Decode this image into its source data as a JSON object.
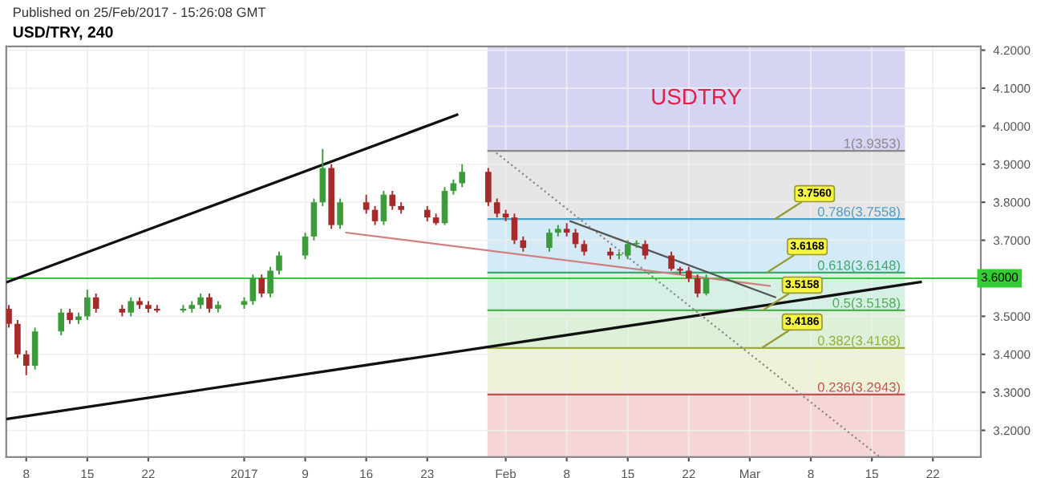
{
  "chart_data": {
    "type": "candlestick",
    "title": "USD/TRY, 240",
    "x": [
      "2016-12-06",
      "2016-12-07",
      "2016-12-08",
      "2016-12-09",
      "2016-12-12",
      "2016-12-13",
      "2016-12-14",
      "2016-12-15",
      "2016-12-16",
      "2016-12-19",
      "2016-12-20",
      "2016-12-21",
      "2016-12-22",
      "2016-12-23",
      "2016-12-26",
      "2016-12-27",
      "2016-12-28",
      "2016-12-29",
      "2016-12-30",
      "2017-01-02",
      "2017-01-03",
      "2017-01-04",
      "2017-01-05",
      "2017-01-06",
      "2017-01-09",
      "2017-01-10",
      "2017-01-11",
      "2017-01-12",
      "2017-01-13",
      "2017-01-16",
      "2017-01-17",
      "2017-01-18",
      "2017-01-19",
      "2017-01-20",
      "2017-01-23",
      "2017-01-24",
      "2017-01-25",
      "2017-01-26",
      "2017-01-27",
      "2017-01-30",
      "2017-01-31",
      "2017-02-01",
      "2017-02-02",
      "2017-02-03",
      "2017-02-06",
      "2017-02-07",
      "2017-02-08",
      "2017-02-09",
      "2017-02-10",
      "2017-02-13",
      "2017-02-14",
      "2017-02-15",
      "2017-02-16",
      "2017-02-17",
      "2017-02-20",
      "2017-02-21",
      "2017-02-22",
      "2017-02-23",
      "2017-02-24"
    ],
    "ohlc": [
      [
        3.52,
        3.53,
        3.47,
        3.48
      ],
      [
        3.48,
        3.49,
        3.39,
        3.4
      ],
      [
        3.4,
        3.41,
        3.345,
        3.37
      ],
      [
        3.37,
        3.47,
        3.36,
        3.46
      ],
      [
        3.46,
        3.52,
        3.45,
        3.51
      ],
      [
        3.51,
        3.52,
        3.48,
        3.49
      ],
      [
        3.49,
        3.51,
        3.48,
        3.5
      ],
      [
        3.5,
        3.57,
        3.49,
        3.55
      ],
      [
        3.55,
        3.56,
        3.51,
        3.52
      ],
      [
        3.52,
        3.53,
        3.5,
        3.51
      ],
      [
        3.51,
        3.55,
        3.5,
        3.54
      ],
      [
        3.54,
        3.55,
        3.52,
        3.53
      ],
      [
        3.53,
        3.54,
        3.51,
        3.52
      ],
      [
        3.52,
        3.53,
        3.51,
        3.515
      ],
      [
        3.515,
        3.53,
        3.51,
        3.52
      ],
      [
        3.52,
        3.54,
        3.51,
        3.53
      ],
      [
        3.53,
        3.56,
        3.52,
        3.55
      ],
      [
        3.55,
        3.56,
        3.51,
        3.52
      ],
      [
        3.52,
        3.54,
        3.51,
        3.53
      ],
      [
        3.53,
        3.55,
        3.52,
        3.54
      ],
      [
        3.54,
        3.61,
        3.53,
        3.6
      ],
      [
        3.6,
        3.61,
        3.55,
        3.56
      ],
      [
        3.56,
        3.63,
        3.55,
        3.62
      ],
      [
        3.62,
        3.67,
        3.61,
        3.66
      ],
      [
        3.66,
        3.72,
        3.65,
        3.71
      ],
      [
        3.71,
        3.81,
        3.7,
        3.8
      ],
      [
        3.8,
        3.94,
        3.79,
        3.89
      ],
      [
        3.89,
        3.9,
        3.73,
        3.74
      ],
      [
        3.74,
        3.81,
        3.73,
        3.8
      ],
      [
        3.8,
        3.82,
        3.77,
        3.78
      ],
      [
        3.78,
        3.79,
        3.74,
        3.75
      ],
      [
        3.75,
        3.83,
        3.74,
        3.82
      ],
      [
        3.82,
        3.83,
        3.78,
        3.79
      ],
      [
        3.79,
        3.8,
        3.77,
        3.78
      ],
      [
        3.78,
        3.79,
        3.75,
        3.76
      ],
      [
        3.76,
        3.77,
        3.74,
        3.745
      ],
      [
        3.745,
        3.84,
        3.74,
        3.83
      ],
      [
        3.83,
        3.86,
        3.82,
        3.85
      ],
      [
        3.85,
        3.9,
        3.84,
        3.88
      ],
      [
        3.88,
        3.89,
        3.79,
        3.8
      ],
      [
        3.8,
        3.81,
        3.76,
        3.77
      ],
      [
        3.77,
        3.78,
        3.75,
        3.76
      ],
      [
        3.76,
        3.77,
        3.69,
        3.7
      ],
      [
        3.7,
        3.71,
        3.67,
        3.68
      ],
      [
        3.68,
        3.73,
        3.67,
        3.72
      ],
      [
        3.72,
        3.74,
        3.71,
        3.73
      ],
      [
        3.73,
        3.745,
        3.71,
        3.72
      ],
      [
        3.72,
        3.73,
        3.68,
        3.69
      ],
      [
        3.69,
        3.7,
        3.66,
        3.67
      ],
      [
        3.67,
        3.68,
        3.65,
        3.66
      ],
      [
        3.66,
        3.67,
        3.65,
        3.66
      ],
      [
        3.66,
        3.7,
        3.65,
        3.69
      ],
      [
        3.69,
        3.7,
        3.68,
        3.69
      ],
      [
        3.69,
        3.7,
        3.65,
        3.66
      ],
      [
        3.66,
        3.67,
        3.62,
        3.625
      ],
      [
        3.625,
        3.63,
        3.61,
        3.62
      ],
      [
        3.62,
        3.63,
        3.59,
        3.6
      ],
      [
        3.6,
        3.61,
        3.55,
        3.56
      ],
      [
        3.56,
        3.61,
        3.555,
        3.6
      ]
    ],
    "colors": [
      "#a52a2a",
      "#a52a2a",
      "#a52a2a",
      "#3c9c3c",
      "#3c9c3c",
      "#a52a2a",
      "#3c9c3c",
      "#3c9c3c",
      "#a52a2a",
      "#a52a2a",
      "#3c9c3c",
      "#a52a2a",
      "#a52a2a",
      "#a52a2a",
      "#3c9c3c",
      "#3c9c3c",
      "#3c9c3c",
      "#a52a2a",
      "#3c9c3c",
      "#3c9c3c",
      "#3c9c3c",
      "#a52a2a",
      "#3c9c3c",
      "#3c9c3c",
      "#3c9c3c",
      "#3c9c3c",
      "#3c9c3c",
      "#a52a2a",
      "#3c9c3c",
      "#a52a2a",
      "#a52a2a",
      "#3c9c3c",
      "#a52a2a",
      "#a52a2a",
      "#a52a2a",
      "#a52a2a",
      "#3c9c3c",
      "#3c9c3c",
      "#3c9c3c",
      "#a52a2a",
      "#a52a2a",
      "#a52a2a",
      "#a52a2a",
      "#a52a2a",
      "#3c9c3c",
      "#3c9c3c",
      "#a52a2a",
      "#a52a2a",
      "#a52a2a",
      "#a52a2a",
      "#3c9c3c",
      "#3c9c3c",
      "#3c9c3c",
      "#a52a2a",
      "#a52a2a",
      "#a52a2a",
      "#a52a2a",
      "#a52a2a",
      "#3c9c3c"
    ],
    "series": [
      {
        "type": "line",
        "color": "#111111",
        "x": [
          "2016-12-05T19:00",
          "2017-01-26T10:00"
        ],
        "values": [
          3.59,
          4.03
        ]
      },
      {
        "type": "line",
        "color": "#111111",
        "x": [
          "2016-12-05T19:00",
          "2017-03-20T14:00"
        ],
        "values": [
          3.23,
          3.59
        ]
      },
      {
        "type": "line",
        "color": "#d08080",
        "x": [
          "2017-01-13T17:00",
          "2017-03-03T07:00"
        ],
        "values": [
          3.72,
          3.58
        ]
      },
      {
        "type": "line",
        "color": "#888888",
        "line_style": "dotted",
        "x": [
          "2017-01-30T22:00",
          "2017-03-15T22:00"
        ],
        "values": [
          3.93,
          3.13
        ]
      },
      {
        "type": "line",
        "color": "#555555",
        "x": [
          "2017-02-08T10:00",
          "2017-03-03T22:00"
        ],
        "values": [
          3.75,
          3.55
        ]
      }
    ],
    "xlim": [
      "2016-12-05T17:00",
      "2017-03-27T12:00"
    ],
    "xticks": [
      {
        "value": "2016-12-08",
        "label": "8"
      },
      {
        "value": "2016-12-15",
        "label": "15"
      },
      {
        "value": "2016-12-22",
        "label": "22"
      },
      {
        "value": "2017-01-02",
        "label": "2017"
      },
      {
        "value": "2017-01-09",
        "label": "9"
      },
      {
        "value": "2017-01-16",
        "label": "16"
      },
      {
        "value": "2017-01-23",
        "label": "23"
      },
      {
        "value": "2017-02-01",
        "label": "Feb"
      },
      {
        "value": "2017-02-08",
        "label": "8"
      },
      {
        "value": "2017-02-15",
        "label": "15"
      },
      {
        "value": "2017-02-22",
        "label": "22"
      },
      {
        "value": "2017-03-01",
        "label": "Mar"
      },
      {
        "value": "2017-03-08",
        "label": "8"
      },
      {
        "value": "2017-03-15",
        "label": "15"
      },
      {
        "value": "2017-03-22",
        "label": "22"
      }
    ],
    "ylim": [
      3.13,
      4.21
    ],
    "yticks": [
      {
        "value": 3.2,
        "label": "3.2000"
      },
      {
        "value": 3.3,
        "label": "3.3000"
      },
      {
        "value": 3.4,
        "label": "3.4000"
      },
      {
        "value": 3.5,
        "label": "3.5000"
      },
      {
        "value": 3.7,
        "label": "3.7000"
      },
      {
        "value": 3.8,
        "label": "3.8000"
      },
      {
        "value": 3.9,
        "label": "3.9000"
      },
      {
        "value": 4.0,
        "label": "4.0000"
      },
      {
        "value": 4.1,
        "label": "4.1000"
      },
      {
        "value": 4.2,
        "label": "4.2000"
      }
    ],
    "grid": true,
    "bands": [
      {
        "axis": "y",
        "from": 3.9353,
        "to": 4.21,
        "color": "#d5d5f3"
      },
      {
        "axis": "y",
        "from": 3.7558,
        "to": 3.9353,
        "color": "#e6e6e6"
      },
      {
        "axis": "y",
        "from": 3.6148,
        "to": 3.7558,
        "color": "#d4ebf7"
      },
      {
        "axis": "y",
        "from": 3.5158,
        "to": 3.6148,
        "color": "#d6f0e6"
      },
      {
        "axis": "y",
        "from": 3.4168,
        "to": 3.5158,
        "color": "#dcf1d8"
      },
      {
        "axis": "y",
        "from": 3.2943,
        "to": 3.4168,
        "color": "#ecf3d6"
      },
      {
        "axis": "y",
        "from": 3.13,
        "to": 3.2943,
        "color": "#f5d5d5"
      }
    ],
    "ref_lines": [
      {
        "axis": "y",
        "value": 3.9353,
        "label": "1(3.9353)",
        "color": "#888888"
      },
      {
        "axis": "y",
        "value": 3.7558,
        "label": "0.786(3.7558)",
        "color": "#4a9fc8"
      },
      {
        "axis": "y",
        "value": 3.6148,
        "label": "0.618(3.6148)",
        "color": "#3aaa6a"
      },
      {
        "axis": "y",
        "value": 3.5158,
        "label": "0.5(3.5158)",
        "color": "#4caf50"
      },
      {
        "axis": "y",
        "value": 3.4168,
        "label": "0.382(3.4168)",
        "color": "#9aac3a"
      },
      {
        "axis": "y",
        "value": 3.2943,
        "label": "0.236(3.2943)",
        "color": "#c85050"
      },
      {
        "axis": "y",
        "value": 3.6,
        "label": "3.6000",
        "color": "#33cc33"
      }
    ],
    "annotations": [
      "Published on 25/Feb/2017 - 15:26:08 GMT",
      "USDTRY",
      {
        "text": "3.7560",
        "x": "2017-03-03T22:00",
        "y": 3.756
      },
      {
        "text": "3.6168",
        "x": "2017-03-03T02:00",
        "y": 3.6168
      },
      {
        "text": "3.5158",
        "x": "2017-03-02T12:00",
        "y": 3.5158
      },
      {
        "text": "3.4186",
        "x": "2017-03-02T12:00",
        "y": 3.4186
      }
    ]
  }
}
